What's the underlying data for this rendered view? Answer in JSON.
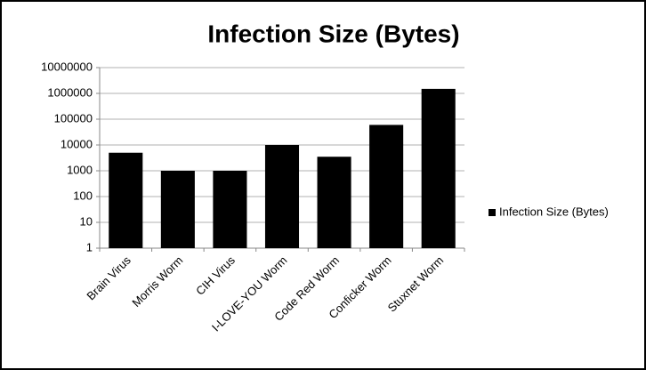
{
  "chart_data": {
    "type": "bar",
    "title": "Infection Size (Bytes)",
    "categories": [
      "Brain Virus",
      "Morris Worm",
      "CIH Virus",
      "I-LOVE-YOU Worm",
      "Code Red Worm",
      "Conficker Worm",
      "Stuxnet Worm"
    ],
    "series": [
      {
        "name": "Infection Size (Bytes)",
        "color": "#000000",
        "values": [
          5000,
          1000,
          1000,
          10000,
          3500,
          60000,
          1500000
        ]
      }
    ],
    "ylim": [
      1,
      10000000
    ],
    "yticks": [
      1,
      10,
      100,
      1000,
      10000,
      100000,
      1000000,
      10000000
    ],
    "log_scale": true,
    "grid": true,
    "legend": "right"
  }
}
